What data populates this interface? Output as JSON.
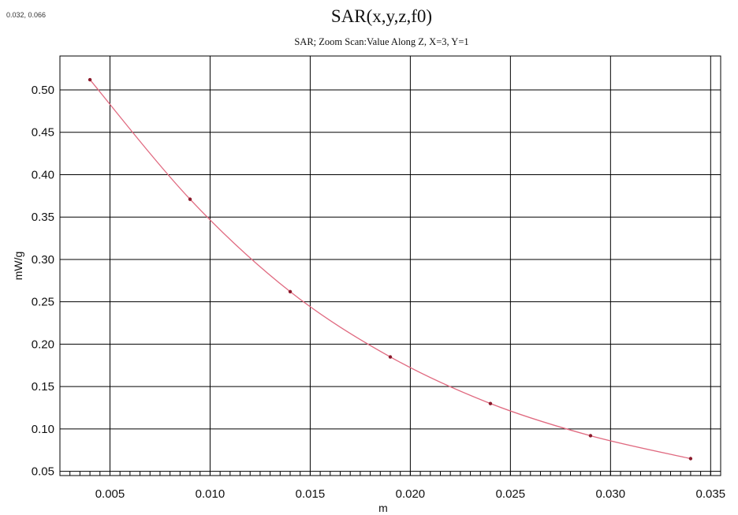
{
  "coord_readout": "0.032, 0.066",
  "chart_data": {
    "type": "line",
    "title": "SAR(x,y,z,f0)",
    "subtitle": "SAR; Zoom Scan:Value Along Z, X=3, Y=1",
    "xlabel": "m",
    "ylabel": "mW/g",
    "xlim": [
      0.0025,
      0.0355
    ],
    "ylim": [
      0.045,
      0.54
    ],
    "x_ticks": [
      0.005,
      0.01,
      0.015,
      0.02,
      0.025,
      0.03,
      0.035
    ],
    "x_tick_labels": [
      "0.005",
      "0.010",
      "0.015",
      "0.020",
      "0.025",
      "0.030",
      "0.035"
    ],
    "y_ticks": [
      0.05,
      0.1,
      0.15,
      0.2,
      0.25,
      0.3,
      0.35,
      0.4,
      0.45,
      0.5
    ],
    "y_tick_labels": [
      "0.05",
      "0.10",
      "0.15",
      "0.20",
      "0.25",
      "0.30",
      "0.35",
      "0.40",
      "0.45",
      "0.50"
    ],
    "grid": true,
    "line_color": "#e06a80",
    "marker_color": "#8b1a2b",
    "series": [
      {
        "x": [
          0.004,
          0.009,
          0.014,
          0.019,
          0.024,
          0.029,
          0.034
        ],
        "y": [
          0.512,
          0.371,
          0.262,
          0.185,
          0.13,
          0.092,
          0.065
        ]
      }
    ]
  }
}
